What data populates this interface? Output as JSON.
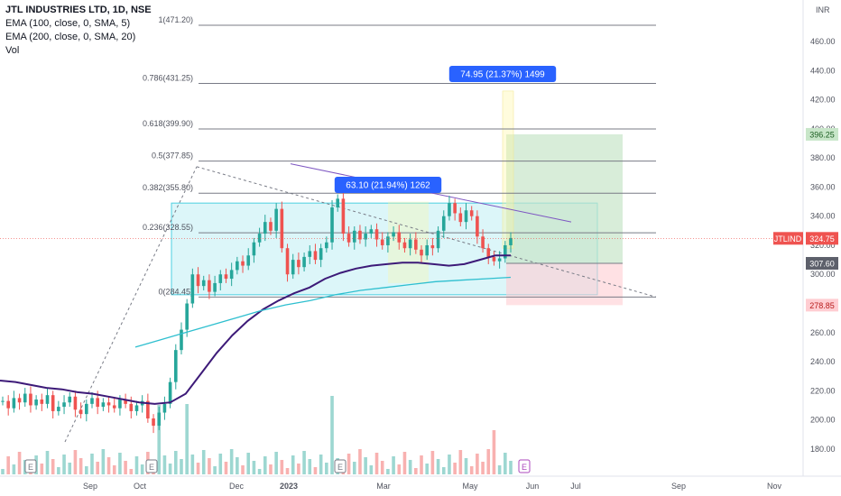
{
  "legend": {
    "symbol": "JTL INDUSTRIES LTD, 1D, NSE",
    "ema100": "EMA (100, close, 0, SMA, 5)",
    "ema200": "EMA (200, close, 0, SMA, 20)",
    "vol": "Vol"
  },
  "colors": {
    "up": "#26a69a",
    "down": "#ef5350",
    "ema100": "#3d1a78",
    "ema200": "#2ebfcf",
    "fib": "#787b86",
    "range_box": "#b2ebf2",
    "target": "#c8e6c9",
    "stop": "#ffcdd2",
    "badge": "#2962ff"
  },
  "chart_data": {
    "type": "candlestick",
    "x_axis_labels": [
      "Sep",
      "Oct",
      "Dec",
      "2023",
      "Mar",
      "May",
      "Jun",
      "Jul",
      "Sep",
      "Nov"
    ],
    "y_axis_unit": "INR",
    "y_ticks": [
      180,
      200,
      220,
      240,
      260,
      280,
      300,
      320,
      340,
      360,
      380,
      400,
      420,
      440,
      460
    ],
    "ylim": [
      168,
      482
    ],
    "fib_levels": [
      {
        "ratio": "1",
        "price": 471.2,
        "label": "1(471.20)"
      },
      {
        "ratio": "0.786",
        "price": 431.25,
        "label": "0.786(431.25)"
      },
      {
        "ratio": "0.618",
        "price": 399.9,
        "label": "0.618(399.90)"
      },
      {
        "ratio": "0.5",
        "price": 377.85,
        "label": "0.5(377.85)"
      },
      {
        "ratio": "0.382",
        "price": 355.8,
        "label": "0.382(355.80)"
      },
      {
        "ratio": "0.236",
        "price": 328.55,
        "label": "0.236(328.55)"
      },
      {
        "ratio": "0",
        "price": 284.45,
        "label": "0(284.45)"
      }
    ],
    "price_tags": [
      {
        "label": "396.25",
        "price": 396.25,
        "kind": "target"
      },
      {
        "label": "JTLIND",
        "value": "324.75",
        "price": 324.75,
        "kind": "last"
      },
      {
        "label": "307.60",
        "price": 307.6,
        "kind": "entry"
      },
      {
        "label": "278.85",
        "price": 278.85,
        "kind": "stop"
      }
    ],
    "measure_labels": [
      {
        "text": "74.95 (21.37%) 1499"
      },
      {
        "text": "63.10 (21.94%) 1262"
      }
    ],
    "events": [
      "E",
      "E",
      "E",
      "E"
    ],
    "candles_sampled_close": [
      213,
      208,
      215,
      212,
      218,
      210,
      214,
      211,
      217,
      206,
      209,
      212,
      216,
      207,
      204,
      211,
      215,
      209,
      212,
      210,
      208,
      214,
      211,
      206,
      210,
      213,
      201,
      196,
      205,
      211,
      226,
      248,
      262,
      280,
      300,
      292,
      296,
      288,
      294,
      300,
      297,
      303,
      309,
      306,
      313,
      322,
      328,
      336,
      330,
      345,
      318,
      300,
      310,
      305,
      312,
      316,
      310,
      318,
      322,
      346,
      352,
      328,
      322,
      330,
      324,
      328,
      331,
      324,
      320,
      326,
      329,
      322,
      318,
      324,
      317,
      313,
      320,
      318,
      330,
      340,
      349,
      342,
      336,
      344,
      340,
      326,
      318,
      312,
      309,
      311,
      320,
      325
    ],
    "ema100_sampled": [
      227,
      226,
      224,
      222,
      221,
      219,
      218,
      216,
      214,
      212,
      211,
      212,
      218,
      232,
      246,
      258,
      268,
      276,
      282,
      287,
      291,
      297,
      301,
      304,
      306,
      307,
      308,
      308,
      307,
      306,
      307,
      310,
      313,
      313
    ],
    "ema200_sampled": [
      250,
      255,
      260,
      265,
      270,
      275,
      279,
      282,
      286,
      289,
      291,
      293,
      295,
      296,
      297,
      298
    ]
  }
}
